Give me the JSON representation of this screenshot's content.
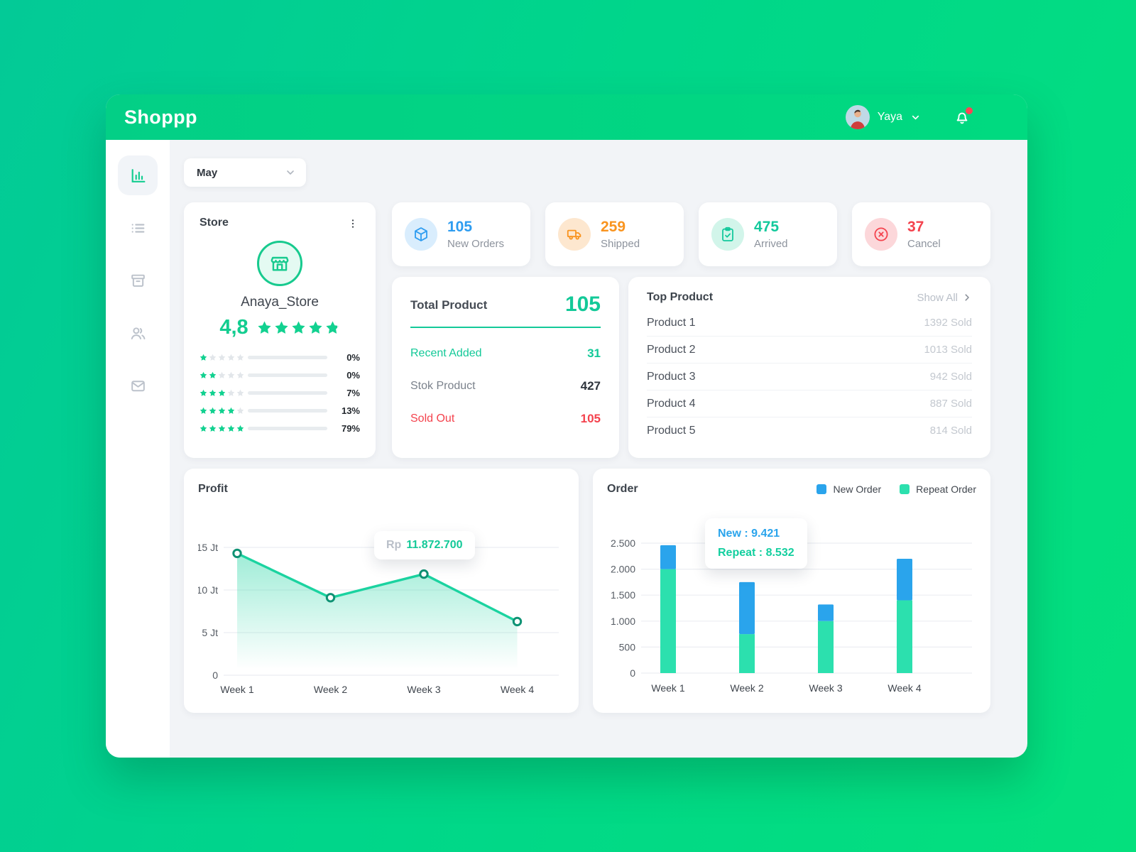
{
  "app": {
    "logo": "Shoppp"
  },
  "header": {
    "user_name": "Yaya",
    "has_notification": true,
    "notification_dot_color": "#ff4455"
  },
  "filters": {
    "month": "May"
  },
  "sidebar": {
    "items": [
      {
        "id": "dashboard",
        "icon": "bar-chart-icon",
        "active": true
      },
      {
        "id": "orders",
        "icon": "list-icon",
        "active": false
      },
      {
        "id": "products",
        "icon": "archive-box-icon",
        "active": false
      },
      {
        "id": "customers",
        "icon": "users-icon",
        "active": false
      },
      {
        "id": "messages",
        "icon": "mail-icon",
        "active": false
      }
    ]
  },
  "store": {
    "title": "Store",
    "name": "Anaya_Store",
    "rating_display": "4,8",
    "rating_value": 4.8,
    "rating_max": 5,
    "star_color": "#12d190",
    "star_empty_color": "#e2e6ea",
    "breakdown": [
      {
        "stars": 1,
        "percent_label": "0%",
        "percent": 0
      },
      {
        "stars": 2,
        "percent_label": "0%",
        "percent": 0
      },
      {
        "stars": 3,
        "percent_label": "7%",
        "percent": 7
      },
      {
        "stars": 4,
        "percent_label": "13%",
        "percent": 13
      },
      {
        "stars": 5,
        "percent_label": "79%",
        "percent": 79
      }
    ]
  },
  "stats": [
    {
      "label": "New Orders",
      "value": "105",
      "icon": "package-icon",
      "color": "#2d9cf0",
      "icon_bg": "#d9edfd"
    },
    {
      "label": "Shipped",
      "value": "259",
      "icon": "truck-icon",
      "color": "#f9941f",
      "icon_bg": "#fde7cf"
    },
    {
      "label": "Arrived",
      "value": "475",
      "icon": "clipboard-check-icon",
      "color": "#13c99c",
      "icon_bg": "#d2f5ea"
    },
    {
      "label": "Cancel",
      "value": "37",
      "icon": "x-circle-icon",
      "color": "#f4424d",
      "icon_bg": "#fcd7da"
    }
  ],
  "total_product": {
    "title": "Total Product",
    "total": "105",
    "rows": [
      {
        "label": "Recent Added",
        "value": "31",
        "style": "green"
      },
      {
        "label": "Stok Product",
        "value": "427",
        "style": "dark"
      },
      {
        "label": "Sold Out",
        "value": "105",
        "style": "red"
      }
    ]
  },
  "top_product": {
    "title": "Top Product",
    "show_all_label": "Show All",
    "items": [
      {
        "name": "Product 1",
        "sold": "1392 Sold"
      },
      {
        "name": "Product 2",
        "sold": "1013 Sold"
      },
      {
        "name": "Product 3",
        "sold": "942 Sold"
      },
      {
        "name": "Product 4",
        "sold": "887 Sold"
      },
      {
        "name": "Product 5",
        "sold": "814 Sold"
      }
    ]
  },
  "chart_data": [
    {
      "id": "profit",
      "type": "area",
      "title": "Profit",
      "categories": [
        "Week 1",
        "Week 2",
        "Week 3",
        "Week 4"
      ],
      "values": [
        14.3,
        9.1,
        11.87,
        6.3
      ],
      "unit": "Jt",
      "ylim": [
        0,
        15
      ],
      "yticks": [
        15,
        10,
        5,
        0
      ],
      "ytick_labels": [
        "15 Jt",
        "10 Jt",
        "5 Jt",
        "0"
      ],
      "grid": true,
      "line_color": "#1bd3a0",
      "point_ring_color": "#0f9274",
      "tooltip": {
        "prefix": "Rp",
        "value": "11.872.700",
        "point": "Week 3"
      }
    },
    {
      "id": "order",
      "type": "bar",
      "stacked": true,
      "title": "Order",
      "categories": [
        "Week 1",
        "Week 2",
        "Week 3",
        "Week 4"
      ],
      "series": [
        {
          "name": "New Order",
          "color": "#2aa4ec",
          "values": [
            460,
            1000,
            320,
            800
          ]
        },
        {
          "name": "Repeat Order",
          "color": "#2ce0ae",
          "values": [
            2000,
            750,
            1000,
            1400
          ]
        }
      ],
      "ylim": [
        0,
        2500
      ],
      "yticks": [
        2500,
        2000,
        1500,
        1000,
        500,
        0
      ],
      "ytick_labels": [
        "2.500",
        "2.000",
        "1.500",
        "1.000",
        "500",
        "0"
      ],
      "grid": true,
      "legend_position": "top-right",
      "tooltip": {
        "separator": " : ",
        "lines": [
          {
            "label": "New",
            "value": "9.421"
          },
          {
            "label": "Repeat",
            "value": "8.532"
          }
        ]
      }
    }
  ]
}
